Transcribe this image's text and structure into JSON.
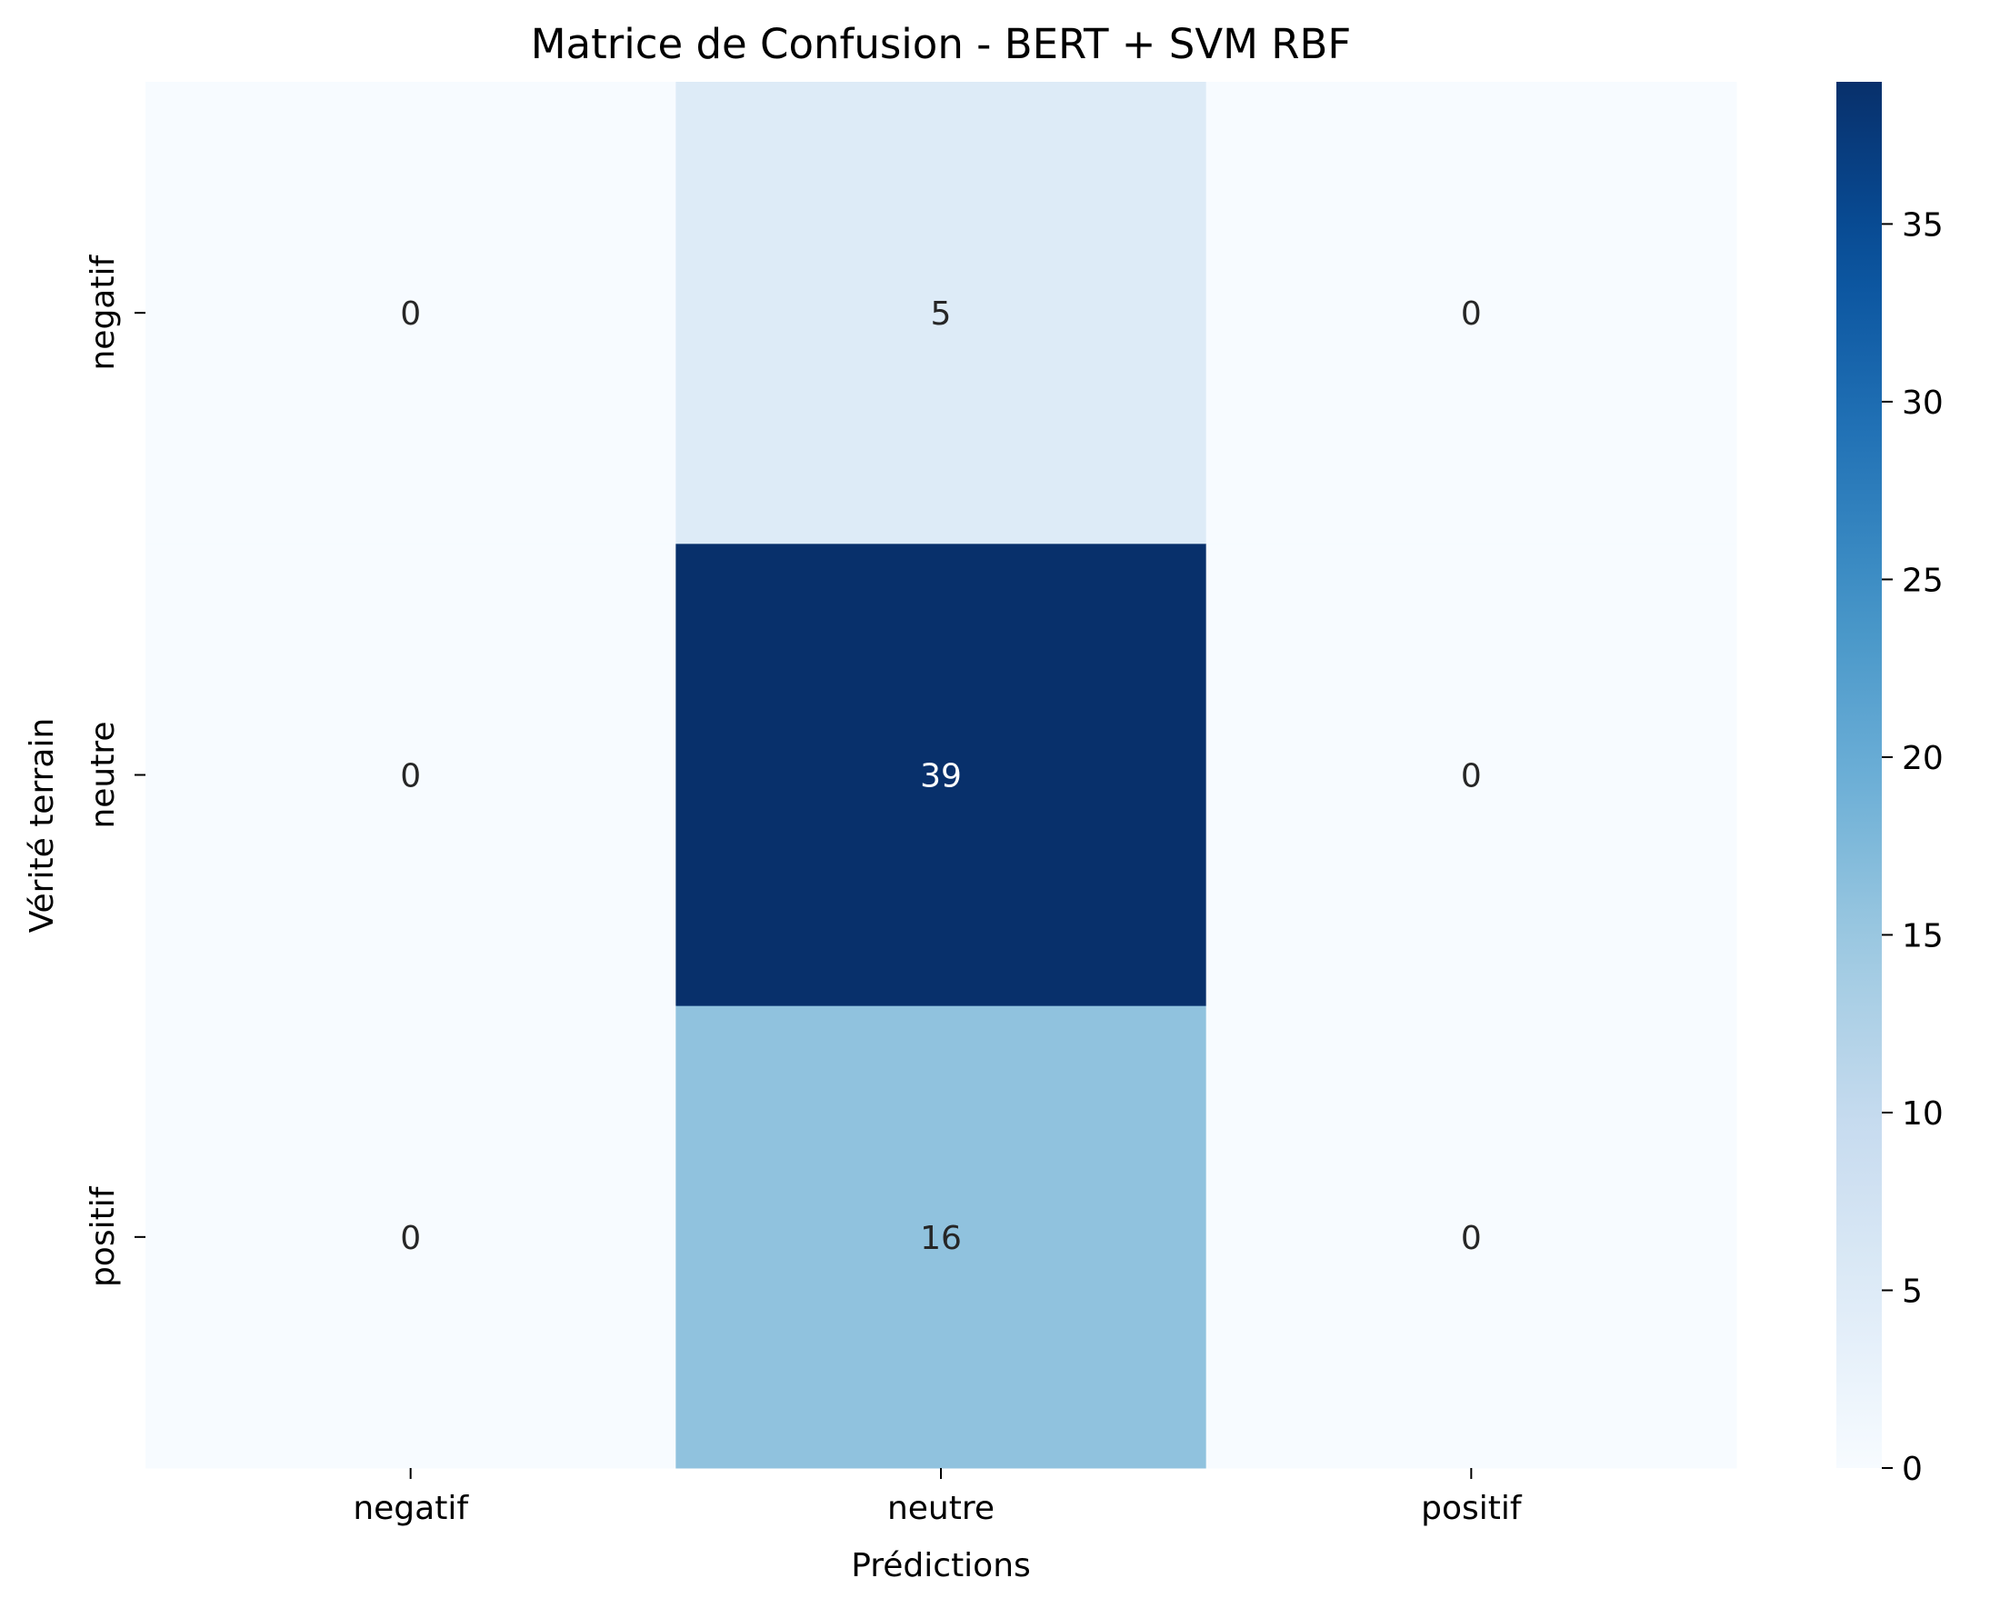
{
  "chart_data": {
    "type": "heatmap",
    "title": "Matrice de Confusion - BERT + SVM RBF",
    "xlabel": "Prédictions",
    "ylabel": "Vérité terrain",
    "x_categories": [
      "negatif",
      "neutre",
      "positif"
    ],
    "y_categories": [
      "negatif",
      "neutre",
      "positif"
    ],
    "values": [
      [
        0,
        5,
        0
      ],
      [
        0,
        39,
        0
      ],
      [
        0,
        16,
        0
      ]
    ],
    "annotations": true,
    "colormap": "Blues",
    "vmin": 0,
    "vmax": 39,
    "colorbar_ticks": [
      "0",
      "5",
      "10",
      "15",
      "20",
      "25",
      "30",
      "35"
    ],
    "colorbar_tick_values": [
      0,
      5,
      10,
      15,
      20,
      25,
      30,
      35
    ],
    "grid": false,
    "legend": "colorbar right",
    "colors": {
      "low": "#f7fbff",
      "high": "#08306b",
      "text_dark": "#262626",
      "text_light": "#ffffff"
    }
  }
}
